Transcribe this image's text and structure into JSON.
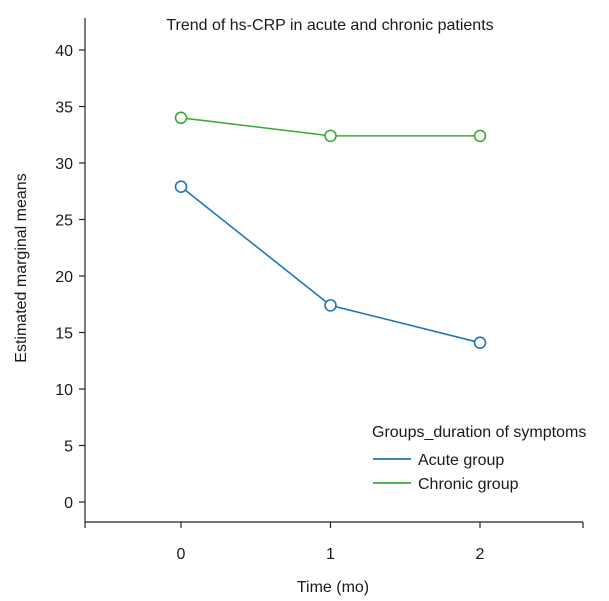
{
  "chart_data": {
    "type": "line",
    "title": "Trend of hs-CRP in acute and chronic patients",
    "xlabel": "Time (mo)",
    "ylabel": "Estimated marginal means",
    "x": [
      0,
      1,
      2
    ],
    "x_tick_labels": [
      "0",
      "1",
      "2"
    ],
    "xlim": [
      -0.65,
      2.7
    ],
    "ylim": [
      -2.2,
      43
    ],
    "y_ticks": [
      0,
      5,
      10,
      15,
      20,
      25,
      30,
      35,
      40
    ],
    "y_tick_labels": [
      "0",
      "5",
      "10",
      "15",
      "20",
      "25",
      "30",
      "35",
      "40"
    ],
    "grid": false,
    "legend": {
      "title": "Groups_duration of symptoms",
      "placement": "bottom-right"
    },
    "series": [
      {
        "name": "Acute group",
        "values": [
          27.9,
          17.4,
          14.1
        ],
        "color": "#1f77b4",
        "marker": "open-circle"
      },
      {
        "name": "Chronic group",
        "values": [
          34.0,
          32.4,
          32.4
        ],
        "color": "#3aaa35",
        "marker": "open-circle"
      }
    ]
  }
}
